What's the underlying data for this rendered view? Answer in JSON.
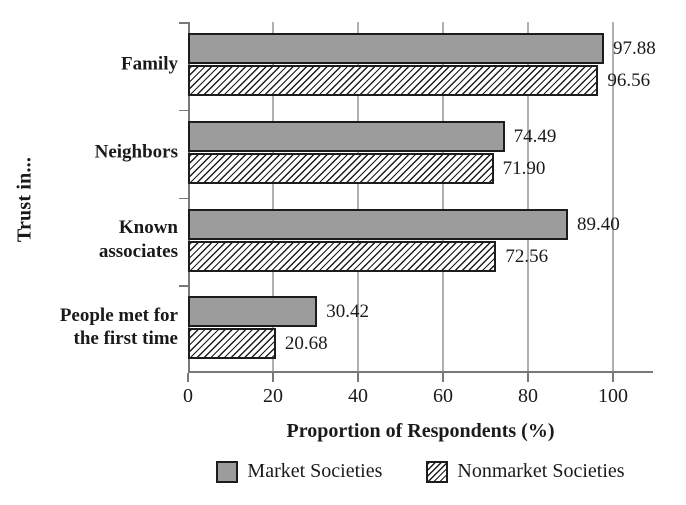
{
  "chart_data": {
    "type": "bar",
    "orientation": "horizontal",
    "ylabel": "Trust in...",
    "xlabel": "Proportion of Respondents (%)",
    "categories": [
      "Family",
      "Neighbors",
      "Known\nassociates",
      "People met for\nthe first time"
    ],
    "series": [
      {
        "name": "Market Societies",
        "pattern": "solid",
        "fill": "#9c9c9c",
        "values": [
          97.88,
          74.49,
          89.4,
          30.42
        ],
        "value_labels": [
          "97.88",
          "74.49",
          "89.40",
          "30.42"
        ]
      },
      {
        "name": "Nonmarket Societies",
        "pattern": "diagonal-hatch",
        "fill": "#ffffff",
        "values": [
          96.56,
          71.9,
          72.56,
          20.68
        ],
        "value_labels": [
          "96.56",
          "71.90",
          "72.56",
          "20.68"
        ]
      }
    ],
    "xlim": [
      0,
      110
    ],
    "xticks": [
      0,
      20,
      40,
      60,
      80,
      100
    ],
    "grid": "vertical",
    "gridline_color": "#b0b0b0",
    "legend_position": "bottom"
  },
  "colors": {
    "bar_fill": "#9c9c9c",
    "bar_border": "#1c1c1c",
    "axis": "#787878",
    "gridline": "#b0b0b0",
    "text": "#1a1a1a",
    "background": "#ffffff"
  }
}
